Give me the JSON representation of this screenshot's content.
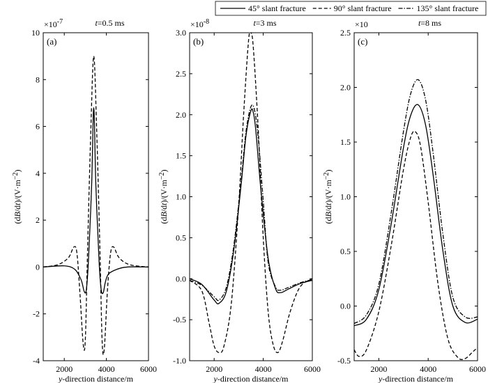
{
  "legend": {
    "entries": [
      {
        "label": "45° slant fracture",
        "dash": "solid"
      },
      {
        "label": "90° slant fracture",
        "dash": "dashed"
      },
      {
        "label": "135° slant fracture",
        "dash": "dashdot"
      }
    ]
  },
  "chart_data": [
    {
      "type": "line",
      "panel_label": "(a)",
      "title": "t=0.5 ms",
      "title_italic_part": "t",
      "title_rest": "=0.5 ms",
      "xlabel": "y-direction distance/m",
      "xlabel_italic_part": "y",
      "xlabel_rest": "-direction distance/m",
      "ylabel": "(dB/dt)/(V·m⁻²)",
      "y_multiplier_base": "×10",
      "y_multiplier_exp": "-7",
      "xlim": [
        1000,
        6000
      ],
      "ylim": [
        -4,
        10
      ],
      "xticks": [
        2000,
        4000,
        6000
      ],
      "yticks": [
        -4,
        -2,
        0,
        2,
        4,
        6,
        8,
        10
      ],
      "xtick_labels": [
        "2000",
        "4000",
        "6000"
      ],
      "ytick_labels": [
        "-4",
        "-2",
        "0",
        "2",
        "4",
        "6",
        "8",
        "10"
      ],
      "series": [
        {
          "name": "45° slant fracture",
          "dash": "solid",
          "x": [
            1000,
            2000,
            2500,
            2800,
            2950,
            3050,
            3150,
            3300,
            3400,
            3500,
            3650,
            3750,
            3850,
            3950,
            4100,
            4500,
            5000,
            6000
          ],
          "y": [
            0,
            0.05,
            -0.1,
            -0.55,
            -1.05,
            -0.95,
            0.3,
            3.5,
            6.8,
            3.5,
            0.3,
            -0.95,
            -1.1,
            -0.65,
            -0.3,
            -0.1,
            0,
            0
          ]
        },
        {
          "name": "90° slant fracture",
          "dash": "dashed",
          "x": [
            1000,
            1700,
            2200,
            2450,
            2600,
            2750,
            2900,
            3000,
            3100,
            3250,
            3400,
            3550,
            3700,
            3800,
            3900,
            4050,
            4200,
            4350,
            4600,
            5100,
            6000
          ],
          "y": [
            0,
            0.1,
            0.4,
            0.85,
            0.6,
            -1.2,
            -3.3,
            -3.1,
            0.5,
            5.5,
            9.0,
            5.5,
            0.5,
            -3.2,
            -3.5,
            -1.0,
            0.6,
            0.85,
            0.4,
            0.1,
            0
          ]
        }
      ]
    },
    {
      "type": "line",
      "panel_label": "(b)",
      "title": "t=3 ms",
      "title_italic_part": "t",
      "title_rest": "=3 ms",
      "xlabel": "y-direction distance/m",
      "xlabel_italic_part": "y",
      "xlabel_rest": "-direction distance/m",
      "ylabel": "(dB/dt)/(V·m⁻²)",
      "y_multiplier_base": "×10",
      "y_multiplier_exp": "-8",
      "xlim": [
        1000,
        6000
      ],
      "ylim": [
        -1.0,
        3.0
      ],
      "xticks": [
        2000,
        4000,
        6000
      ],
      "yticks": [
        -1.0,
        -0.5,
        0.0,
        0.5,
        1.0,
        1.5,
        2.0,
        2.5,
        3.0
      ],
      "xtick_labels": [
        "2000",
        "4000",
        "6000"
      ],
      "ytick_labels": [
        "-1.0",
        "-0.5",
        "0.0",
        "0.5",
        "1.0",
        "1.5",
        "2.0",
        "2.5",
        "3.0"
      ],
      "series": [
        {
          "name": "45° slant fracture",
          "dash": "solid",
          "x": [
            1000,
            1500,
            2000,
            2200,
            2500,
            2800,
            3100,
            3300,
            3500,
            3600,
            3700,
            3900,
            4200,
            4500,
            4700,
            5000,
            5500,
            6000
          ],
          "y": [
            0,
            -0.07,
            -0.26,
            -0.3,
            -0.15,
            0.35,
            1.15,
            1.75,
            2.05,
            2.02,
            1.8,
            1.1,
            0.25,
            -0.12,
            -0.17,
            -0.13,
            -0.06,
            -0.02
          ]
        },
        {
          "name": "90° slant fracture",
          "dash": "dashed",
          "x": [
            1000,
            1500,
            1800,
            2000,
            2200,
            2400,
            2700,
            3000,
            3200,
            3400,
            3500,
            3600,
            3800,
            4000,
            4200,
            4400,
            4600,
            4800,
            5100,
            5500,
            6000
          ],
          "y": [
            -0.02,
            -0.15,
            -0.55,
            -0.82,
            -0.9,
            -0.82,
            -0.3,
            0.9,
            2.0,
            2.9,
            3.0,
            2.8,
            1.8,
            0.5,
            -0.4,
            -0.8,
            -0.9,
            -0.75,
            -0.4,
            -0.1,
            0
          ]
        },
        {
          "name": "135° slant fracture",
          "dash": "dashdot",
          "x": [
            1000,
            1500,
            2000,
            2200,
            2500,
            2800,
            3100,
            3300,
            3500,
            3650,
            3800,
            4000,
            4200,
            4500,
            4700,
            5000,
            5500,
            6000
          ],
          "y": [
            -0.02,
            -0.08,
            -0.22,
            -0.26,
            -0.1,
            0.4,
            1.2,
            1.8,
            2.1,
            2.05,
            1.7,
            0.95,
            0.2,
            -0.1,
            -0.14,
            -0.11,
            -0.05,
            -0.01
          ]
        }
      ]
    },
    {
      "type": "line",
      "panel_label": "(c)",
      "title": "t=8 ms",
      "title_italic_part": "t",
      "title_rest": "=8 ms",
      "xlabel": "y-direction distance/m",
      "xlabel_italic_part": "y",
      "xlabel_rest": "-direction distance/m",
      "ylabel": "(dB/dt)/(V·m⁻²)",
      "y_multiplier_base": "×10",
      "y_multiplier_exp": "",
      "xlim": [
        1000,
        6000
      ],
      "ylim": [
        -0.5,
        2.5
      ],
      "xticks": [
        2000,
        4000,
        6000
      ],
      "yticks": [
        -0.5,
        0.0,
        0.5,
        1.0,
        1.5,
        2.0,
        2.5
      ],
      "xtick_labels": [
        "2000",
        "4000",
        "6000"
      ],
      "ytick_labels": [
        "-0.5",
        "0.0",
        "0.5",
        "1.0",
        "1.5",
        "2.0",
        "2.5"
      ],
      "series": [
        {
          "name": "45° slant fracture",
          "dash": "solid",
          "x": [
            1000,
            1500,
            2000,
            2500,
            3000,
            3300,
            3600,
            3900,
            4200,
            4600,
            5000,
            5500,
            6000
          ],
          "y": [
            -0.18,
            -0.12,
            0.15,
            0.75,
            1.45,
            1.75,
            1.84,
            1.65,
            1.2,
            0.5,
            0.0,
            -0.15,
            -0.12
          ]
        },
        {
          "name": "90° slant fracture",
          "dash": "dashed",
          "x": [
            1000,
            1200,
            1500,
            2000,
            2500,
            3000,
            3300,
            3500,
            3700,
            4000,
            4400,
            4800,
            5200,
            5500,
            5800,
            6000
          ],
          "y": [
            -0.4,
            -0.46,
            -0.4,
            -0.05,
            0.55,
            1.25,
            1.55,
            1.59,
            1.45,
            0.95,
            0.2,
            -0.3,
            -0.47,
            -0.48,
            -0.42,
            -0.38
          ]
        },
        {
          "name": "135° slant fracture",
          "dash": "dashdot",
          "x": [
            1000,
            1500,
            2000,
            2500,
            3000,
            3300,
            3600,
            3900,
            4200,
            4600,
            5000,
            5500,
            6000
          ],
          "y": [
            -0.16,
            -0.08,
            0.2,
            0.85,
            1.6,
            1.95,
            2.07,
            1.88,
            1.4,
            0.65,
            0.08,
            -0.1,
            -0.1
          ]
        }
      ]
    }
  ]
}
